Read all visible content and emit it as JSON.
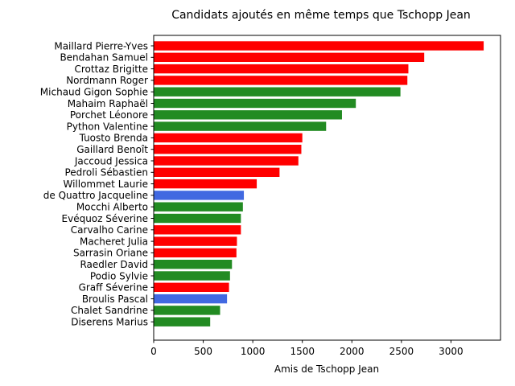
{
  "chart_data": {
    "type": "bar",
    "orientation": "horizontal",
    "title": "Candidats ajoutés en même temps que Tschopp Jean",
    "xlabel": "Amis de Tschopp Jean",
    "ylabel": "",
    "xlim": [
      0,
      3500
    ],
    "xticks": [
      0,
      500,
      1000,
      1500,
      2000,
      2500,
      3000
    ],
    "grid": false,
    "colors": {
      "red": "#ff0000",
      "green": "#228b22",
      "blue": "#4169e1"
    },
    "bars": [
      {
        "label": "Maillard Pierre-Yves",
        "value": 3330,
        "color": "#ff0000"
      },
      {
        "label": "Bendahan Samuel",
        "value": 2730,
        "color": "#ff0000"
      },
      {
        "label": "Crottaz Brigitte",
        "value": 2570,
        "color": "#ff0000"
      },
      {
        "label": "Nordmann Roger",
        "value": 2560,
        "color": "#ff0000"
      },
      {
        "label": "Michaud Gigon Sophie",
        "value": 2490,
        "color": "#228b22"
      },
      {
        "label": "Mahaim Raphaël",
        "value": 2040,
        "color": "#228b22"
      },
      {
        "label": "Porchet Léonore",
        "value": 1900,
        "color": "#228b22"
      },
      {
        "label": "Python Valentine",
        "value": 1740,
        "color": "#228b22"
      },
      {
        "label": "Tuosto Brenda",
        "value": 1500,
        "color": "#ff0000"
      },
      {
        "label": "Gaillard Benoît",
        "value": 1490,
        "color": "#ff0000"
      },
      {
        "label": "Jaccoud Jessica",
        "value": 1460,
        "color": "#ff0000"
      },
      {
        "label": "Pedroli Sébastien",
        "value": 1270,
        "color": "#ff0000"
      },
      {
        "label": "Willommet Laurie",
        "value": 1040,
        "color": "#ff0000"
      },
      {
        "label": "de Quattro Jacqueline",
        "value": 910,
        "color": "#4169e1"
      },
      {
        "label": "Mocchi Alberto",
        "value": 900,
        "color": "#228b22"
      },
      {
        "label": "Evéquoz Séverine",
        "value": 880,
        "color": "#228b22"
      },
      {
        "label": "Carvalho Carine",
        "value": 880,
        "color": "#ff0000"
      },
      {
        "label": "Macheret Julia",
        "value": 840,
        "color": "#ff0000"
      },
      {
        "label": "Sarrasin Oriane",
        "value": 835,
        "color": "#ff0000"
      },
      {
        "label": "Raedler David",
        "value": 790,
        "color": "#228b22"
      },
      {
        "label": "Podio Sylvie",
        "value": 770,
        "color": "#228b22"
      },
      {
        "label": "Graff Séverine",
        "value": 760,
        "color": "#ff0000"
      },
      {
        "label": "Broulis Pascal",
        "value": 740,
        "color": "#4169e1"
      },
      {
        "label": "Chalet Sandrine",
        "value": 670,
        "color": "#228b22"
      },
      {
        "label": "Diserens Marius",
        "value": 570,
        "color": "#228b22"
      }
    ]
  }
}
